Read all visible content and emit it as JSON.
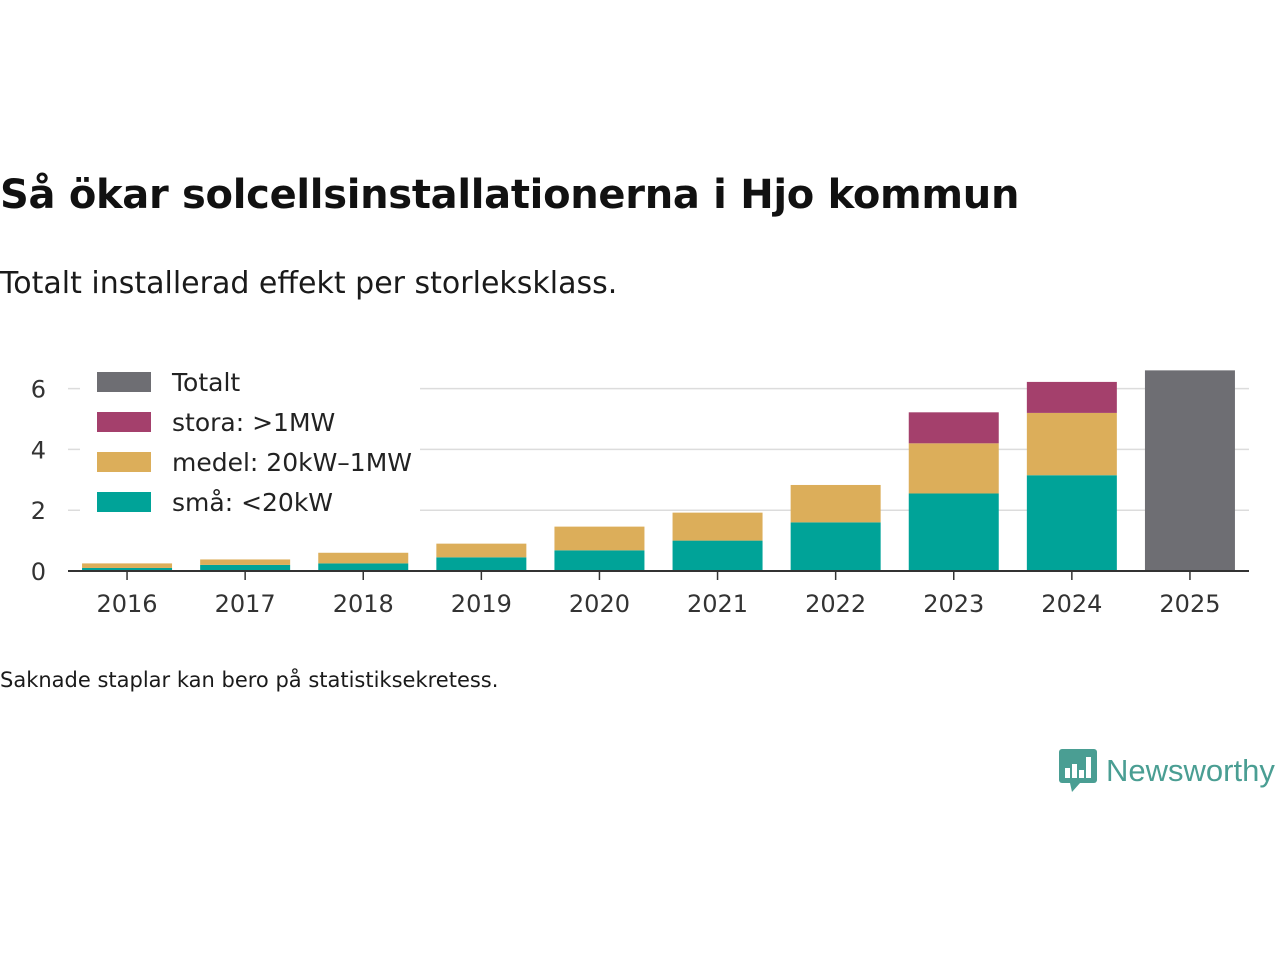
{
  "title": "Så ökar solcellsinstallationerna i Hjo kommun",
  "subtitle": "Totalt installerad effekt per storleksklass.",
  "footnote": "Saknade staplar kan bero på statistiksekretess.",
  "brand": {
    "name": "Newsworthy",
    "color": "#4a9e93"
  },
  "chart_data": {
    "type": "bar",
    "stacked": true,
    "title": "Så ökar solcellsinstallationerna i Hjo kommun",
    "subtitle": "Totalt installerad effekt per storleksklass.",
    "xlabel": "",
    "ylabel": "",
    "ylim": [
      0,
      7
    ],
    "yticks": [
      0,
      2,
      4,
      6
    ],
    "grid": true,
    "legend_position": "top-left",
    "categories": [
      "2016",
      "2017",
      "2018",
      "2019",
      "2020",
      "2021",
      "2022",
      "2023",
      "2024",
      "2025"
    ],
    "series": [
      {
        "name": "små: <20kW",
        "color": "#00a398",
        "values": [
          0.1,
          0.2,
          0.25,
          0.45,
          0.68,
          1.0,
          1.6,
          2.55,
          3.15,
          null
        ]
      },
      {
        "name": "medel: 20kW–1MW",
        "color": "#dcae5a",
        "values": [
          0.15,
          0.18,
          0.35,
          0.45,
          0.78,
          0.92,
          1.23,
          1.65,
          2.05,
          null
        ]
      },
      {
        "name": "stora: >1MW",
        "color": "#a4406c",
        "values": [
          null,
          null,
          null,
          null,
          null,
          null,
          null,
          1.02,
          1.02,
          null
        ]
      },
      {
        "name": "Totalt",
        "color": "#6e6e73",
        "values": [
          null,
          null,
          null,
          null,
          null,
          null,
          null,
          null,
          null,
          6.6
        ]
      }
    ],
    "legend_order": [
      "Totalt",
      "stora: >1MW",
      "medel: 20kW–1MW",
      "små: <20kW"
    ]
  }
}
